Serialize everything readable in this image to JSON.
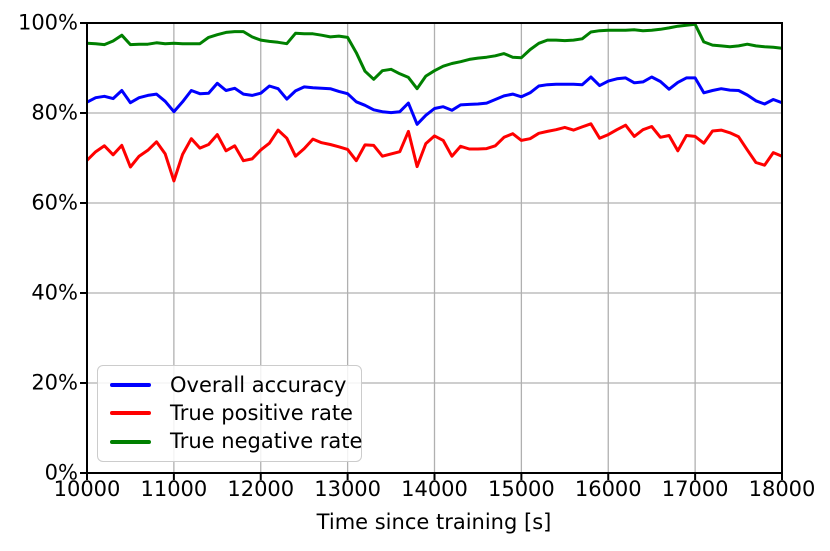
{
  "figure": {
    "background": "#ffffff",
    "spine_color": "#000000"
  },
  "chart_data": {
    "type": "line",
    "title": "",
    "xlabel": "Time since training [s]",
    "ylabel": "",
    "xlim": [
      10000,
      18000
    ],
    "ylim": [
      0,
      100
    ],
    "grid": true,
    "grid_color": "#b0b0b0",
    "legend_position": "lower left",
    "xticks": {
      "values": [
        10000,
        11000,
        12000,
        13000,
        14000,
        15000,
        16000,
        17000,
        18000
      ],
      "labels": [
        "10000",
        "11000",
        "12000",
        "13000",
        "14000",
        "15000",
        "16000",
        "17000",
        "18000"
      ]
    },
    "yticks": {
      "values": [
        0,
        20,
        40,
        60,
        80,
        100
      ],
      "labels": [
        "0%",
        "20%",
        "40%",
        "60%",
        "80%",
        "100%"
      ]
    },
    "x": [
      10000,
      10100,
      10200,
      10300,
      10400,
      10500,
      10600,
      10700,
      10800,
      10900,
      11000,
      11100,
      11200,
      11300,
      11400,
      11500,
      11600,
      11700,
      11800,
      11900,
      12000,
      12100,
      12200,
      12300,
      12400,
      12500,
      12600,
      12700,
      12800,
      12900,
      13000,
      13100,
      13200,
      13300,
      13400,
      13500,
      13600,
      13700,
      13800,
      13900,
      14000,
      14100,
      14200,
      14300,
      14400,
      14500,
      14600,
      14700,
      14800,
      14900,
      15000,
      15100,
      15200,
      15300,
      15400,
      15500,
      15600,
      15700,
      15800,
      15900,
      16000,
      16100,
      16200,
      16300,
      16400,
      16500,
      16600,
      16700,
      16800,
      16900,
      17000,
      17100,
      17200,
      17300,
      17400,
      17500,
      17600,
      17700,
      17800,
      17900,
      18000
    ],
    "series": [
      {
        "name": "Overall accuracy",
        "color": "#0000ff",
        "values": [
          82.4,
          83.4,
          83.7,
          83.2,
          85.0,
          82.3,
          83.4,
          83.9,
          84.2,
          82.6,
          80.3,
          82.5,
          85.0,
          84.3,
          84.4,
          86.6,
          85.0,
          85.5,
          84.2,
          83.9,
          84.4,
          86.0,
          85.4,
          83.1,
          84.9,
          85.8,
          85.6,
          85.5,
          85.4,
          84.8,
          84.3,
          82.5,
          81.7,
          80.7,
          80.3,
          80.1,
          80.3,
          82.2,
          77.5,
          79.5,
          81.0,
          81.4,
          80.6,
          81.8,
          81.9,
          82.0,
          82.2,
          83.0,
          83.8,
          84.2,
          83.6,
          84.5,
          86.0,
          86.3,
          86.4,
          86.4,
          86.4,
          86.3,
          88.0,
          86.1,
          87.1,
          87.6,
          87.8,
          86.7,
          86.9,
          88.0,
          87.0,
          85.3,
          86.8,
          87.8,
          87.8,
          84.5,
          85.0,
          85.4,
          85.1,
          85.0,
          84.0,
          82.7,
          82.0,
          83.0,
          82.3
        ]
      },
      {
        "name": "True positive rate",
        "color": "#ff0000",
        "values": [
          69.5,
          71.4,
          72.7,
          70.7,
          72.8,
          68.0,
          70.4,
          71.7,
          73.6,
          70.9,
          64.9,
          70.8,
          74.3,
          72.2,
          73.0,
          75.2,
          71.6,
          72.7,
          69.4,
          69.8,
          71.8,
          73.3,
          76.2,
          74.4,
          70.4,
          72.1,
          74.2,
          73.4,
          73.0,
          72.5,
          71.9,
          69.4,
          72.9,
          72.8,
          70.4,
          70.9,
          71.4,
          75.9,
          68.1,
          73.2,
          74.9,
          73.9,
          70.4,
          72.6,
          72.0,
          72.0,
          72.1,
          72.7,
          74.6,
          75.4,
          73.9,
          74.3,
          75.5,
          75.9,
          76.3,
          76.8,
          76.2,
          76.9,
          77.6,
          74.4,
          75.2,
          76.3,
          77.3,
          74.8,
          76.3,
          77.0,
          74.6,
          75.0,
          71.6,
          75.0,
          74.8,
          73.3,
          76.0,
          76.2,
          75.6,
          74.7,
          71.8,
          69.0,
          68.4,
          71.2,
          70.4
        ]
      },
      {
        "name": "True negative rate",
        "color": "#008000",
        "values": [
          95.5,
          95.4,
          95.2,
          96.0,
          97.3,
          95.2,
          95.3,
          95.3,
          95.6,
          95.4,
          95.5,
          95.4,
          95.4,
          95.4,
          96.8,
          97.4,
          97.9,
          98.1,
          98.1,
          96.9,
          96.2,
          95.9,
          95.7,
          95.4,
          97.7,
          97.6,
          97.6,
          97.3,
          96.9,
          97.1,
          96.8,
          93.4,
          89.3,
          87.5,
          89.4,
          89.7,
          88.7,
          87.9,
          85.4,
          88.2,
          89.4,
          90.4,
          91.0,
          91.4,
          91.9,
          92.2,
          92.4,
          92.7,
          93.2,
          92.4,
          92.3,
          94.1,
          95.5,
          96.2,
          96.2,
          96.1,
          96.2,
          96.5,
          98.0,
          98.3,
          98.4,
          98.4,
          98.4,
          98.5,
          98.3,
          98.4,
          98.6,
          98.9,
          99.3,
          99.5,
          99.7,
          95.8,
          95.1,
          94.9,
          94.7,
          94.9,
          95.3,
          94.9,
          94.7,
          94.6,
          94.4
        ]
      }
    ]
  }
}
